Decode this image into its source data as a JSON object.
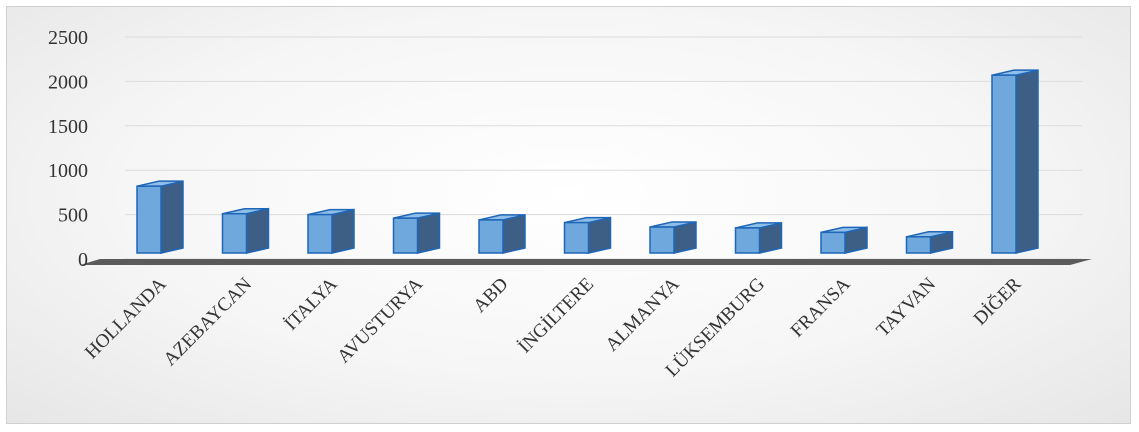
{
  "chart_data": {
    "type": "bar",
    "categories": [
      "HOLLANDA",
      "AZEBAYCAN",
      "İTALYA",
      "AVUSTURYA",
      "ABD",
      "İNGİLTERE",
      "ALMANYA",
      "LÜKSEMBURG",
      "FRANSA",
      "TAYVAN",
      "DİĞER"
    ],
    "values": [
      820,
      510,
      500,
      460,
      440,
      410,
      360,
      350,
      300,
      250,
      2070
    ],
    "yticks": [
      "0",
      "500",
      "1000",
      "1500",
      "2000",
      "2500"
    ],
    "ylim": [
      0,
      2500
    ],
    "grid": true,
    "style": "3d-column",
    "colors": {
      "front": "#6fa8dc",
      "side": "#3d5f86",
      "top": "#8fbfe9",
      "edge": "#1f66b7",
      "floor": "#5b5b5b",
      "grid": "#dcdcdc"
    }
  }
}
